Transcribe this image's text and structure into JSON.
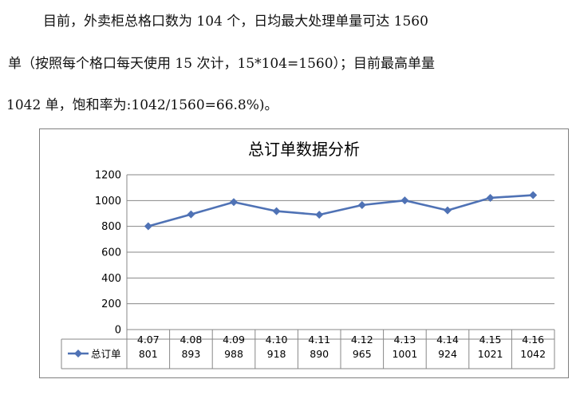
{
  "paragraph": {
    "line1": "目前，外卖柜总格口数为 104 个，日均最大处理单量可达 1560",
    "line2": "单（按照每个格口每天使用 15 次计，15*104=1560）；目前最高单量",
    "line3": "1042 单，饱和率为:1042/1560=66.8%)。"
  },
  "chart_data": {
    "type": "line",
    "title": "总订单数据分析",
    "categories": [
      "4.07",
      "4.08",
      "4.09",
      "4.10",
      "4.11",
      "4.12",
      "4.13",
      "4.14",
      "4.15",
      "4.16"
    ],
    "series": [
      {
        "name": "总订单",
        "values": [
          801,
          893,
          988,
          918,
          890,
          965,
          1001,
          924,
          1021,
          1042
        ]
      }
    ],
    "ylim": [
      0,
      1200
    ],
    "yticks": [
      0,
      200,
      400,
      600,
      800,
      1000,
      1200
    ],
    "grid": true,
    "legend": "data-table-left",
    "line_color": "#4F72B5",
    "grid_color": "#878787"
  }
}
